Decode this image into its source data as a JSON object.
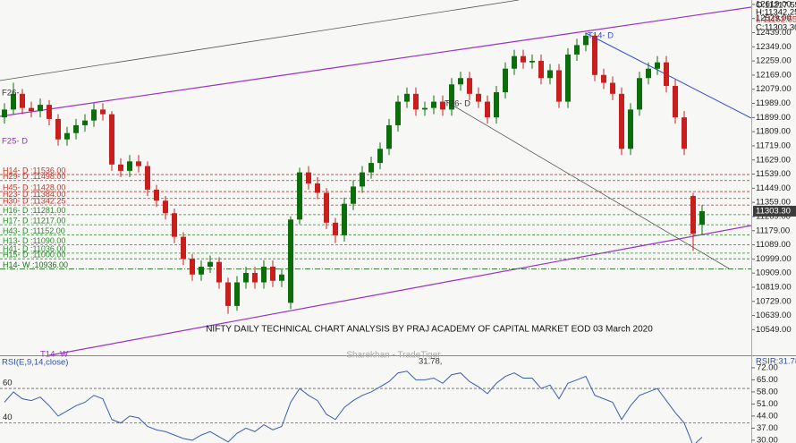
{
  "chart_data": {
    "type": "candlestick",
    "title": "NIFTY DAILY TECHNICAL CHART ANALYSIS BY PRAJ ACADEMY OF CAPITAL MARKET EOD 03 March 2020",
    "watermark": "Sharekhan - TradeTiger",
    "header": [
      "O:11217.55",
      "H:11342.25",
      "L:11152.55",
      "C:11303.30"
    ],
    "price_tag": "11303.30",
    "ylim": [
      10386,
      12647
    ],
    "yticks": [
      {
        "value": 12619,
        "label": "12619.00"
      },
      {
        "value": 12529,
        "label": "12529.00"
      },
      {
        "value": 12439,
        "label": "12439.00"
      },
      {
        "value": 12349,
        "label": "12349.00"
      },
      {
        "value": 12259,
        "label": "12259.00"
      },
      {
        "value": 12169,
        "label": "12169.00"
      },
      {
        "value": 12079,
        "label": "12079.00"
      },
      {
        "value": 11989,
        "label": "11989.00"
      },
      {
        "value": 11899,
        "label": "11899.00"
      },
      {
        "value": 11809,
        "label": "11809.00"
      },
      {
        "value": 11719,
        "label": "11719.00"
      },
      {
        "value": 11629,
        "label": "11629.00"
      },
      {
        "value": 11539,
        "label": "11539.00"
      },
      {
        "value": 11449,
        "label": "11449.00"
      },
      {
        "value": 11359,
        "label": "11359.00"
      },
      {
        "value": 11269,
        "label": "11269.00"
      },
      {
        "value": 11179,
        "label": "11179.00"
      },
      {
        "value": 11089,
        "label": "11089.00"
      },
      {
        "value": 10999,
        "label": "10999.00"
      },
      {
        "value": 10909,
        "label": "10909.00"
      },
      {
        "value": 10819,
        "label": "10819.00"
      },
      {
        "value": 10729,
        "label": "10729.00"
      },
      {
        "value": 10639,
        "label": "10639.00"
      },
      {
        "value": 10549,
        "label": "10549.00"
      }
    ],
    "up_color": "#0b6e0b",
    "down_color": "#c81e1e",
    "open": [
      11900,
      11950,
      12050,
      11960,
      11940,
      11980,
      11890,
      11760,
      11800,
      11850,
      11880,
      11950,
      11920,
      11600,
      11560,
      11620,
      11590,
      11440,
      11370,
      11290,
      11140,
      11000,
      10900,
      10950,
      10980,
      10850,
      10700,
      10850,
      10910,
      10850,
      10950,
      10860,
      10720,
      11250,
      11550,
      11480,
      11420,
      11230,
      11150,
      11350,
      11460,
      11550,
      11610,
      11700,
      11850,
      12000,
      12050,
      11950,
      11960,
      12000,
      11950,
      12110,
      12150,
      12050,
      12000,
      11900,
      12060,
      12210,
      12290,
      12250,
      12260,
      12150,
      12200,
      12000,
      12300,
      12360,
      12420,
      12170,
      12120,
      12050,
      11700,
      11950,
      12150,
      12210,
      12250,
      12100,
      11900,
      11400,
      11217.55
    ],
    "high": [
      11990,
      12120,
      12080,
      12000,
      12020,
      12010,
      11920,
      11840,
      11890,
      11920,
      11990,
      11990,
      11940,
      11640,
      11660,
      11660,
      11620,
      11470,
      11400,
      11320,
      11170,
      11030,
      10990,
      11020,
      11010,
      10880,
      10890,
      10950,
      10950,
      10990,
      10990,
      10940,
      11270,
      11580,
      11590,
      11520,
      11450,
      11260,
      11390,
      11500,
      11590,
      11650,
      11740,
      11890,
      12040,
      12090,
      12090,
      12000,
      12040,
      12040,
      12150,
      12190,
      12190,
      12090,
      12040,
      12100,
      12250,
      12330,
      12330,
      12300,
      12300,
      12240,
      12240,
      12340,
      12400,
      12440,
      12430,
      12210,
      12160,
      12090,
      11990,
      12190,
      12250,
      12290,
      12290,
      12140,
      11940,
      11420,
      11342.25
    ],
    "low": [
      11860,
      11920,
      11920,
      11900,
      11900,
      11850,
      11720,
      11720,
      11760,
      11810,
      11840,
      11880,
      11560,
      11520,
      11520,
      11550,
      11400,
      11330,
      11250,
      11100,
      10960,
      10860,
      10860,
      10910,
      10810,
      10650,
      10670,
      10810,
      10810,
      10810,
      10820,
      10820,
      10680,
      11220,
      11440,
      11380,
      11190,
      11100,
      11110,
      11310,
      11420,
      11510,
      11570,
      11660,
      11810,
      11960,
      11910,
      11910,
      11920,
      11910,
      11910,
      12070,
      12010,
      11960,
      11860,
      11860,
      12020,
      12170,
      12210,
      12210,
      12110,
      12110,
      11960,
      11960,
      12260,
      12320,
      12130,
      12080,
      12010,
      11660,
      11660,
      11910,
      12110,
      12170,
      12060,
      11860,
      11660,
      11050,
      11152.55
    ],
    "close": [
      11950,
      12050,
      11960,
      11940,
      11980,
      11890,
      11760,
      11800,
      11850,
      11880,
      11950,
      11920,
      11600,
      11560,
      11620,
      11590,
      11440,
      11370,
      11290,
      11140,
      11000,
      10900,
      10950,
      10980,
      10850,
      10700,
      10850,
      10910,
      10850,
      10950,
      10860,
      10900,
      11250,
      11550,
      11480,
      11420,
      11230,
      11150,
      11350,
      11460,
      11550,
      11610,
      11700,
      11850,
      12000,
      12050,
      11950,
      11960,
      12000,
      11950,
      12110,
      12150,
      12050,
      12000,
      11900,
      12060,
      12210,
      12290,
      12250,
      12260,
      12150,
      12200,
      12000,
      12300,
      12360,
      12420,
      12170,
      12120,
      12050,
      11700,
      11950,
      12150,
      12210,
      12250,
      12100,
      11900,
      11700,
      11160,
      11303.3
    ],
    "levels": [
      {
        "label": "H14- D :11536.00",
        "value": 11536,
        "color": "#c0392b"
      },
      {
        "label": "H29- D :11498.00",
        "value": 11498,
        "color": "#c0392b"
      },
      {
        "label": "H45- D :11428.00",
        "value": 11428,
        "color": "#c0392b"
      },
      {
        "label": "H23- D :11384.00",
        "value": 11384,
        "color": "#c0392b"
      },
      {
        "label": "H30- D :11342.25",
        "value": 11342.25,
        "color": "#c0392b"
      },
      {
        "label": "H16- D :11281.00",
        "value": 11281,
        "color": "#2e8b2e"
      },
      {
        "label": "H17- D :11217.00",
        "value": 11217,
        "color": "#2e8b2e"
      },
      {
        "label": "H43- D :11152.00",
        "value": 11152,
        "color": "#2e8b2e"
      },
      {
        "label": "H13- D :11090.00",
        "value": 11090,
        "color": "#2e8b2e"
      },
      {
        "label": "H41- D :11036.00",
        "value": 11036,
        "color": "#2e8b2e"
      },
      {
        "label": "H15- D :11000.00",
        "value": 11000,
        "color": "#2e8b2e"
      },
      {
        "label": "H14- W :10936.00",
        "value": 10936,
        "color": "#1f6e1f"
      }
    ],
    "trendline_labels": [
      "F26-",
      "F25- D",
      "T14- D",
      "T26- D",
      "T14- W"
    ],
    "rsi": {
      "label": "RSI(E,9,14,close)",
      "value_text": "31.78,",
      "right_text": "RSIR:31.78",
      "color": "#3a5fb0",
      "ylim": [
        28.4,
        78.7
      ],
      "yticks": [
        {
          "value": 72,
          "label": "72.00"
        },
        {
          "value": 65,
          "label": "65.00"
        },
        {
          "value": 58,
          "label": "58.00"
        },
        {
          "value": 51,
          "label": "51.00"
        },
        {
          "value": 44,
          "label": "44.00"
        },
        {
          "value": 37,
          "label": "37.00"
        },
        {
          "value": 30,
          "label": "30.00"
        }
      ],
      "levels": [
        60,
        40
      ],
      "values": [
        52,
        58,
        54,
        53,
        55,
        50,
        44,
        47,
        50,
        52,
        56,
        54,
        42,
        40,
        44,
        43,
        38,
        36,
        35,
        33,
        31,
        30,
        33,
        35,
        32,
        29,
        34,
        37,
        35,
        39,
        36,
        38,
        52,
        60,
        56,
        53,
        45,
        42,
        49,
        53,
        56,
        58,
        61,
        64,
        69,
        70,
        65,
        65,
        66,
        63,
        68,
        69,
        64,
        61,
        57,
        63,
        67,
        69,
        66,
        66,
        60,
        62,
        54,
        63,
        65,
        67,
        56,
        54,
        52,
        42,
        50,
        56,
        58,
        60,
        53,
        46,
        40,
        27,
        31.78
      ]
    }
  }
}
